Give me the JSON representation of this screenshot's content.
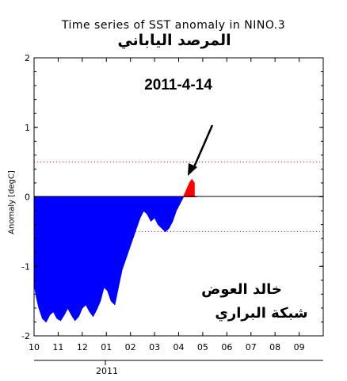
{
  "chart_data": {
    "type": "area",
    "title": "Time series of SST anomaly in NINO.3",
    "ylabel": "Anomaly [degC]",
    "ylim": [
      -2,
      2
    ],
    "yticks": [
      -2,
      -1,
      0,
      1,
      2
    ],
    "x_tick_labels": [
      "10",
      "11",
      "12",
      "01",
      "02",
      "03",
      "04",
      "05",
      "06",
      "07",
      "08",
      "09"
    ],
    "year_label": "2011",
    "threshold_lines": [
      0.5,
      -0.5
    ],
    "colors": {
      "negative": "#0000ff",
      "positive": "#ff0000",
      "threshold": "#ff0000"
    },
    "series": [
      {
        "x": [
          0.0,
          0.1,
          0.2,
          0.35,
          0.5,
          0.65,
          0.8,
          0.95,
          1.1,
          1.25,
          1.4,
          1.55,
          1.7,
          1.85,
          2.0,
          2.15,
          2.3,
          2.45,
          2.6,
          2.75,
          2.9,
          3.05,
          3.2,
          3.35,
          3.5,
          3.65,
          3.8,
          3.95,
          4.1,
          4.25,
          4.4,
          4.55,
          4.7,
          4.85,
          5.0,
          5.15,
          5.3,
          5.45,
          5.6,
          5.75,
          5.9,
          6.05,
          6.2,
          6.35,
          6.45,
          6.55,
          6.65,
          6.75
        ],
        "values": [
          -1.25,
          -1.45,
          -1.6,
          -1.75,
          -1.8,
          -1.7,
          -1.65,
          -1.75,
          -1.78,
          -1.7,
          -1.6,
          -1.7,
          -1.78,
          -1.72,
          -1.6,
          -1.55,
          -1.65,
          -1.72,
          -1.62,
          -1.5,
          -1.3,
          -1.35,
          -1.5,
          -1.55,
          -1.3,
          -1.05,
          -0.9,
          -0.75,
          -0.6,
          -0.45,
          -0.3,
          -0.2,
          -0.25,
          -0.35,
          -0.3,
          -0.4,
          -0.45,
          -0.5,
          -0.45,
          -0.35,
          -0.2,
          -0.1,
          0.0,
          0.12,
          0.2,
          0.25,
          0.2,
          0.0
        ]
      }
    ]
  },
  "annotations": {
    "arabic_title": "المرصد الياباني",
    "date": "2011-4-14",
    "author": "خالد العوض",
    "site": "شبكة البراري"
  }
}
